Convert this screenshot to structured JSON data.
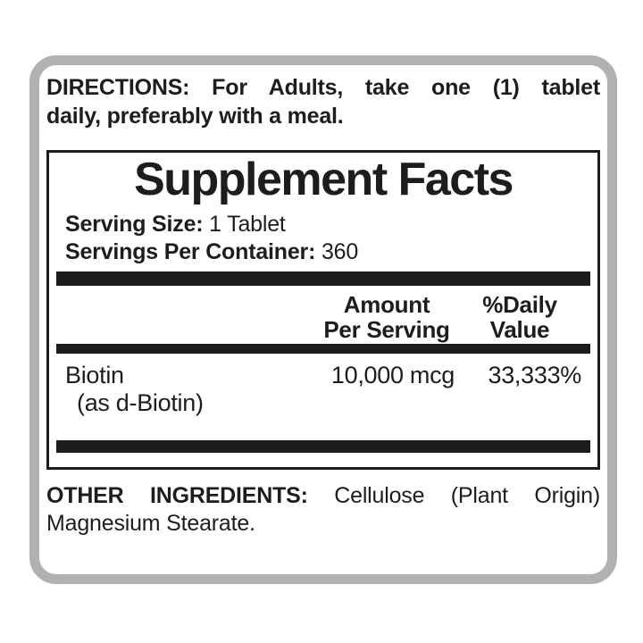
{
  "label": {
    "directions": {
      "heading": "DIRECTIONS:",
      "line1_rest": "For Adults, take one (1) tablet",
      "line2": "daily, preferably with a meal."
    },
    "facts": {
      "title": "Supplement Facts",
      "serving_size_label": "Serving Size:",
      "serving_size_value": "1 Tablet",
      "servings_per_container_label": "Servings Per Container:",
      "servings_per_container_value": "360",
      "columns": {
        "amount_line1": "Amount",
        "amount_line2": "Per Serving",
        "daily_value_line1": "%Daily",
        "daily_value_line2": "Value"
      },
      "rows": [
        {
          "name": "Biotin",
          "name_sub": "(as d-Biotin)",
          "amount": "10,000 mcg",
          "daily_value": "33,333%"
        }
      ]
    },
    "other_ingredients": {
      "heading": "OTHER INGREDIENTS:",
      "line1_rest": "Cellulose (Plant Origin)",
      "line2": "Magnesium Stearate."
    },
    "colors": {
      "frame_gray": "#b1b1b1",
      "ink": "#1d1d1d",
      "background": "#ffffff"
    }
  }
}
